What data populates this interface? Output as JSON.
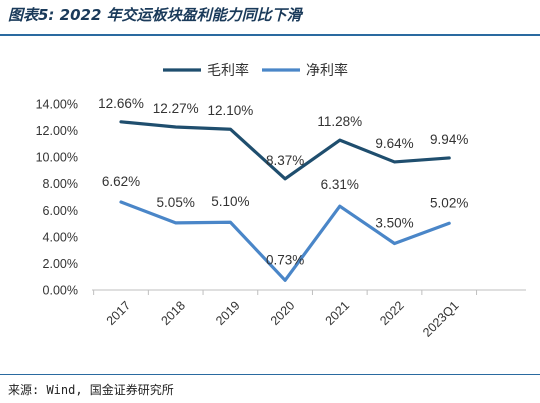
{
  "figure": {
    "title": "图表5: 2022 年交运板块盈利能力同比下滑",
    "source": "来源: Wind, 国金证券研究所"
  },
  "chart_data": {
    "type": "line",
    "categories": [
      "2017",
      "2018",
      "2019",
      "2020",
      "2021",
      "2022",
      "2023Q1"
    ],
    "series": [
      {
        "name": "毛利率",
        "color": "#1f4e6e",
        "values": [
          12.66,
          12.27,
          12.1,
          8.37,
          11.28,
          9.64,
          9.94
        ],
        "labels": [
          "12.66%",
          "12.27%",
          "12.10%",
          "8.37%",
          "11.28%",
          "9.64%",
          "9.94%"
        ]
      },
      {
        "name": "净利率",
        "color": "#4a86c8",
        "values": [
          6.62,
          5.05,
          5.1,
          0.73,
          6.31,
          3.5,
          5.02
        ],
        "labels": [
          "6.62%",
          "5.05%",
          "5.10%",
          "0.73%",
          "6.31%",
          "3.50%",
          "5.02%"
        ]
      }
    ],
    "yticks": [
      "0.00%",
      "2.00%",
      "4.00%",
      "6.00%",
      "8.00%",
      "10.00%",
      "12.00%",
      "14.00%"
    ],
    "ylim": [
      0,
      14
    ],
    "grid": false,
    "legend_position": "top-center"
  }
}
